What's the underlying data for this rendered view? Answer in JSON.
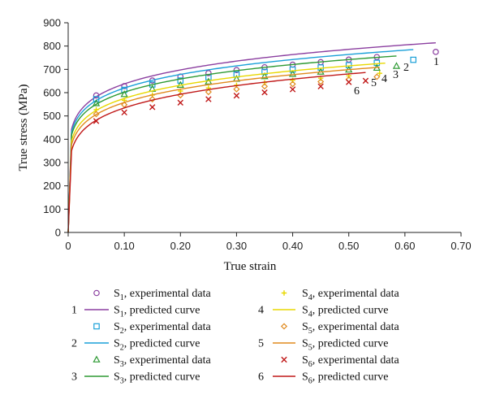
{
  "chart_data": {
    "type": "line",
    "title": "",
    "xlabel": "True strain",
    "ylabel": "True stress (MPa)",
    "xlim": [
      0,
      0.7
    ],
    "ylim": [
      0,
      900
    ],
    "x_ticks": [
      "0",
      "0.10",
      "0.20",
      "0.30",
      "0.40",
      "0.50",
      "0.60",
      "0.70"
    ],
    "y_ticks": [
      "0",
      "100",
      "200",
      "300",
      "400",
      "500",
      "600",
      "700",
      "800",
      "900"
    ],
    "grid": false,
    "legend_position": "bottom",
    "series": [
      {
        "id": "S1",
        "curve_label": "1",
        "exp_label": "S1, experimental data",
        "pred_label": "S1, predicted curve",
        "color": "#8b3fa0",
        "marker": "circle",
        "exp_x": [
          0.05,
          0.1,
          0.15,
          0.2,
          0.25,
          0.3,
          0.35,
          0.4,
          0.45,
          0.5,
          0.55,
          0.655
        ],
        "exp_y": [
          588,
          628,
          652,
          669,
          684,
          697,
          709,
          720,
          731,
          742,
          753,
          775
        ],
        "k": 860,
        "n": 0.13,
        "eps_max": 0.655
      },
      {
        "id": "S2",
        "curve_label": "2",
        "exp_label": "S2, experimental data",
        "pred_label": "S2, predicted curve",
        "color": "#1aa0d8",
        "marker": "square",
        "exp_x": [
          0.05,
          0.1,
          0.15,
          0.2,
          0.25,
          0.3,
          0.35,
          0.4,
          0.45,
          0.5,
          0.55,
          0.615
        ],
        "exp_y": [
          572,
          612,
          635,
          652,
          666,
          678,
          689,
          699,
          708,
          718,
          728,
          741
        ],
        "k": 836,
        "n": 0.13,
        "eps_max": 0.615
      },
      {
        "id": "S3",
        "curve_label": "3",
        "exp_label": "S3, experimental data",
        "pred_label": "S3, predicted curve",
        "color": "#2e9a34",
        "marker": "triangle",
        "exp_x": [
          0.05,
          0.1,
          0.15,
          0.2,
          0.25,
          0.3,
          0.35,
          0.4,
          0.45,
          0.5,
          0.55,
          0.585
        ],
        "exp_y": [
          554,
          593,
          616,
          633,
          647,
          659,
          670,
          680,
          689,
          698,
          706,
          714
        ],
        "k": 812,
        "n": 0.13,
        "eps_max": 0.585
      },
      {
        "id": "S4",
        "curve_label": "4",
        "exp_label": "S4, experimental data",
        "pred_label": "S4, predicted curve",
        "color": "#e8d800",
        "marker": "plus",
        "exp_x": [
          0.05,
          0.1,
          0.15,
          0.2,
          0.25,
          0.3,
          0.35,
          0.4,
          0.45,
          0.5,
          0.555
        ],
        "exp_y": [
          527,
          567,
          590,
          607,
          620,
          632,
          643,
          653,
          662,
          672,
          683
        ],
        "k": 785,
        "n": 0.135,
        "eps_max": 0.565
      },
      {
        "id": "S5",
        "curve_label": "5",
        "exp_label": "S5, experimental data",
        "pred_label": "S5, predicted curve",
        "color": "#e08a1e",
        "marker": "diamond",
        "exp_x": [
          0.05,
          0.1,
          0.15,
          0.2,
          0.25,
          0.3,
          0.35,
          0.4,
          0.45,
          0.5,
          0.55
        ],
        "exp_y": [
          508,
          548,
          572,
          589,
          603,
          615,
          627,
          637,
          647,
          657,
          668
        ],
        "k": 770,
        "n": 0.14,
        "eps_max": 0.555
      },
      {
        "id": "S6",
        "curve_label": "6",
        "exp_label": "S6, experimental data",
        "pred_label": "S6, predicted curve",
        "color": "#c01818",
        "marker": "x",
        "exp_x": [
          0.05,
          0.1,
          0.15,
          0.2,
          0.25,
          0.3,
          0.35,
          0.4,
          0.45,
          0.5,
          0.53
        ],
        "exp_y": [
          478,
          515,
          538,
          557,
          572,
          587,
          601,
          614,
          627,
          645,
          651
        ],
        "k": 755,
        "n": 0.15,
        "eps_max": 0.53
      }
    ]
  }
}
